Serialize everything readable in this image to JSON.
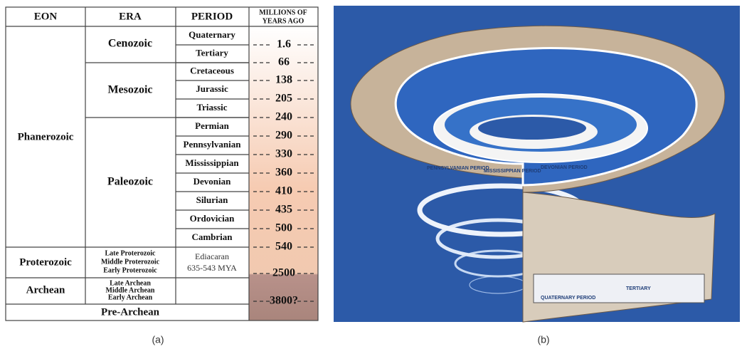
{
  "table": {
    "headers": [
      "EON",
      "ERA",
      "PERIOD"
    ],
    "mya_header": [
      "MILLIONS OF",
      "YEARS AGO"
    ],
    "eons": [
      "Phanerozoic",
      "Proterozoic",
      "Archean",
      "Pre-Archean"
    ],
    "eras": [
      "Cenozoic",
      "Mesozoic",
      "Paleozoic"
    ],
    "proterozoic_eras": [
      "Late Proterozoic",
      "Middle Proterozoic",
      "Early Proterozoic"
    ],
    "archean_eras": [
      "Late Archean",
      "Middle Archean",
      "Early Archean"
    ],
    "periods": [
      "Quaternary",
      "Tertiary",
      "Cretaceous",
      "Jurassic",
      "Triassic",
      "Permian",
      "Pennsylvanian",
      "Mississippian",
      "Devonian",
      "Silurian",
      "Ordovician",
      "Cambrian"
    ],
    "ediacaran": [
      "Ediacaran",
      "635-543 MYA"
    ],
    "mya": [
      "1.6",
      "66",
      "138",
      "205",
      "240",
      "290",
      "330",
      "360",
      "410",
      "435",
      "500",
      "540",
      "2500",
      "3800?"
    ]
  },
  "illustration": {
    "labels": [
      "PENNSYLVANIAN PERIOD",
      "MISSISSIPPIAN PERIOD",
      "DEVONIAN PERIOD",
      "QUATERNARY PERIOD",
      "TERTIARY"
    ]
  },
  "captions": [
    "(a)",
    "(b)"
  ]
}
